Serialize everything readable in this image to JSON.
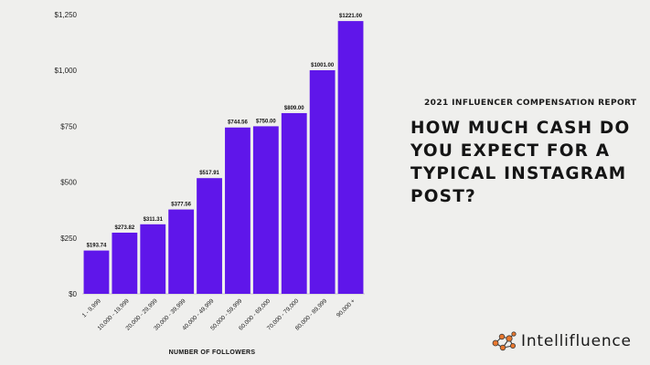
{
  "chart_data": {
    "type": "bar",
    "xlabel": "NUMBER OF FOLLOWERS",
    "ylabel": "",
    "ylim": [
      0,
      1250
    ],
    "yticks": [
      0,
      250,
      500,
      750,
      1000,
      1250
    ],
    "ytick_labels": [
      "$0",
      "$250",
      "$500",
      "$750",
      "$1,000",
      "$1,250"
    ],
    "categories": [
      "1 - 9,999",
      "10,000 - 19,999",
      "20,000 - 29,999",
      "30,000 - 39,999",
      "40,000 - 49,999",
      "50,000 - 59,999",
      "60,000 - 69,000",
      "70,000 - 79,000",
      "80,000 - 89,999",
      "90,000 +"
    ],
    "values": [
      193.74,
      273.82,
      311.31,
      377.56,
      517.91,
      744.56,
      750.0,
      809.0,
      1001.0,
      1221.0
    ],
    "data_labels": [
      "$193.74",
      "$273.82",
      "$311.31",
      "$377.56",
      "$517.91",
      "$744.56",
      "$750.00",
      "$809.00",
      "$1001.00",
      "$1221.00"
    ],
    "bar_color": "#5f16ea",
    "grid": false
  },
  "report_title": "2021 INFLUENCER COMPENSATION REPORT",
  "headline_lines": [
    "HOW MUCH CASH DO",
    "YOU EXPECT FOR A",
    "TYPICAL INSTAGRAM",
    "POST?"
  ],
  "brand": {
    "name": "Intellifluence",
    "logo_icon": "network-nodes-icon",
    "logo_color": "#e8772e"
  }
}
